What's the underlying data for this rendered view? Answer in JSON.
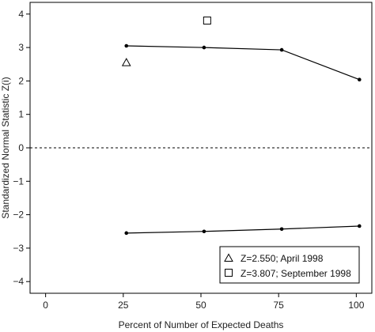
{
  "chart_data": {
    "type": "line",
    "xlabel": "Percent of Number of Expected Deaths",
    "ylabel": "Standardized Normal Statistic Z(i)",
    "xlim": [
      -5,
      105
    ],
    "ylim": [
      -4.35,
      4.35
    ],
    "xticks": [
      0,
      25,
      50,
      75,
      100
    ],
    "yticks": [
      -4,
      -3,
      -2,
      -1,
      0,
      1,
      2,
      3,
      4
    ],
    "grid": false,
    "reference_line": {
      "y": 0,
      "style": "dashed"
    },
    "series": [
      {
        "x": [
          26,
          51,
          76,
          101
        ],
        "y": [
          3.05,
          3.0,
          2.93,
          2.04
        ],
        "marker": "dot",
        "connected": true
      },
      {
        "x": [
          26,
          51,
          76,
          101
        ],
        "y": [
          -2.55,
          -2.5,
          -2.43,
          -2.34
        ],
        "marker": "dot",
        "connected": true
      },
      {
        "x": [
          26
        ],
        "y": [
          2.55
        ],
        "marker": "triangle",
        "connected": false
      },
      {
        "x": [
          52
        ],
        "y": [
          3.807
        ],
        "marker": "square",
        "connected": false
      }
    ],
    "legend_position": "bottom-right",
    "legend": [
      {
        "marker": "triangle",
        "label": "Z=2.550; April 1998"
      },
      {
        "marker": "square",
        "label": "Z=3.807; September 1998"
      }
    ]
  }
}
